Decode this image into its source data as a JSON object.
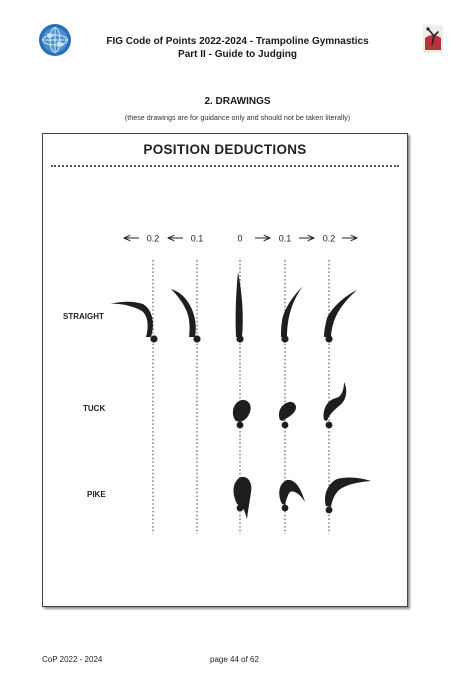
{
  "header": {
    "title_line1": "FIG Code of Points 2022-2024 - Trampoline Gymnastics",
    "title_line2": "Part II - Guide to Judging",
    "left_logo_icon": "fig-globe-logo-icon",
    "right_logo_icon": "trampoline-gymnast-logo-icon"
  },
  "section": {
    "title": "2. DRAWINGS",
    "subtitle": "(these drawings are for guidance only and should not be taken literally)"
  },
  "panel": {
    "title": "POSITION DEDUCTIONS",
    "scale": [
      "0.2",
      "0.1",
      "0",
      "0.1",
      "0.2"
    ],
    "rows": [
      {
        "label": "STRAIGHT"
      },
      {
        "label": "TUCK"
      },
      {
        "label": "PIKE"
      }
    ]
  },
  "footer": {
    "left": "CoP 2022 - 2024",
    "page": "page 44 of 62"
  }
}
